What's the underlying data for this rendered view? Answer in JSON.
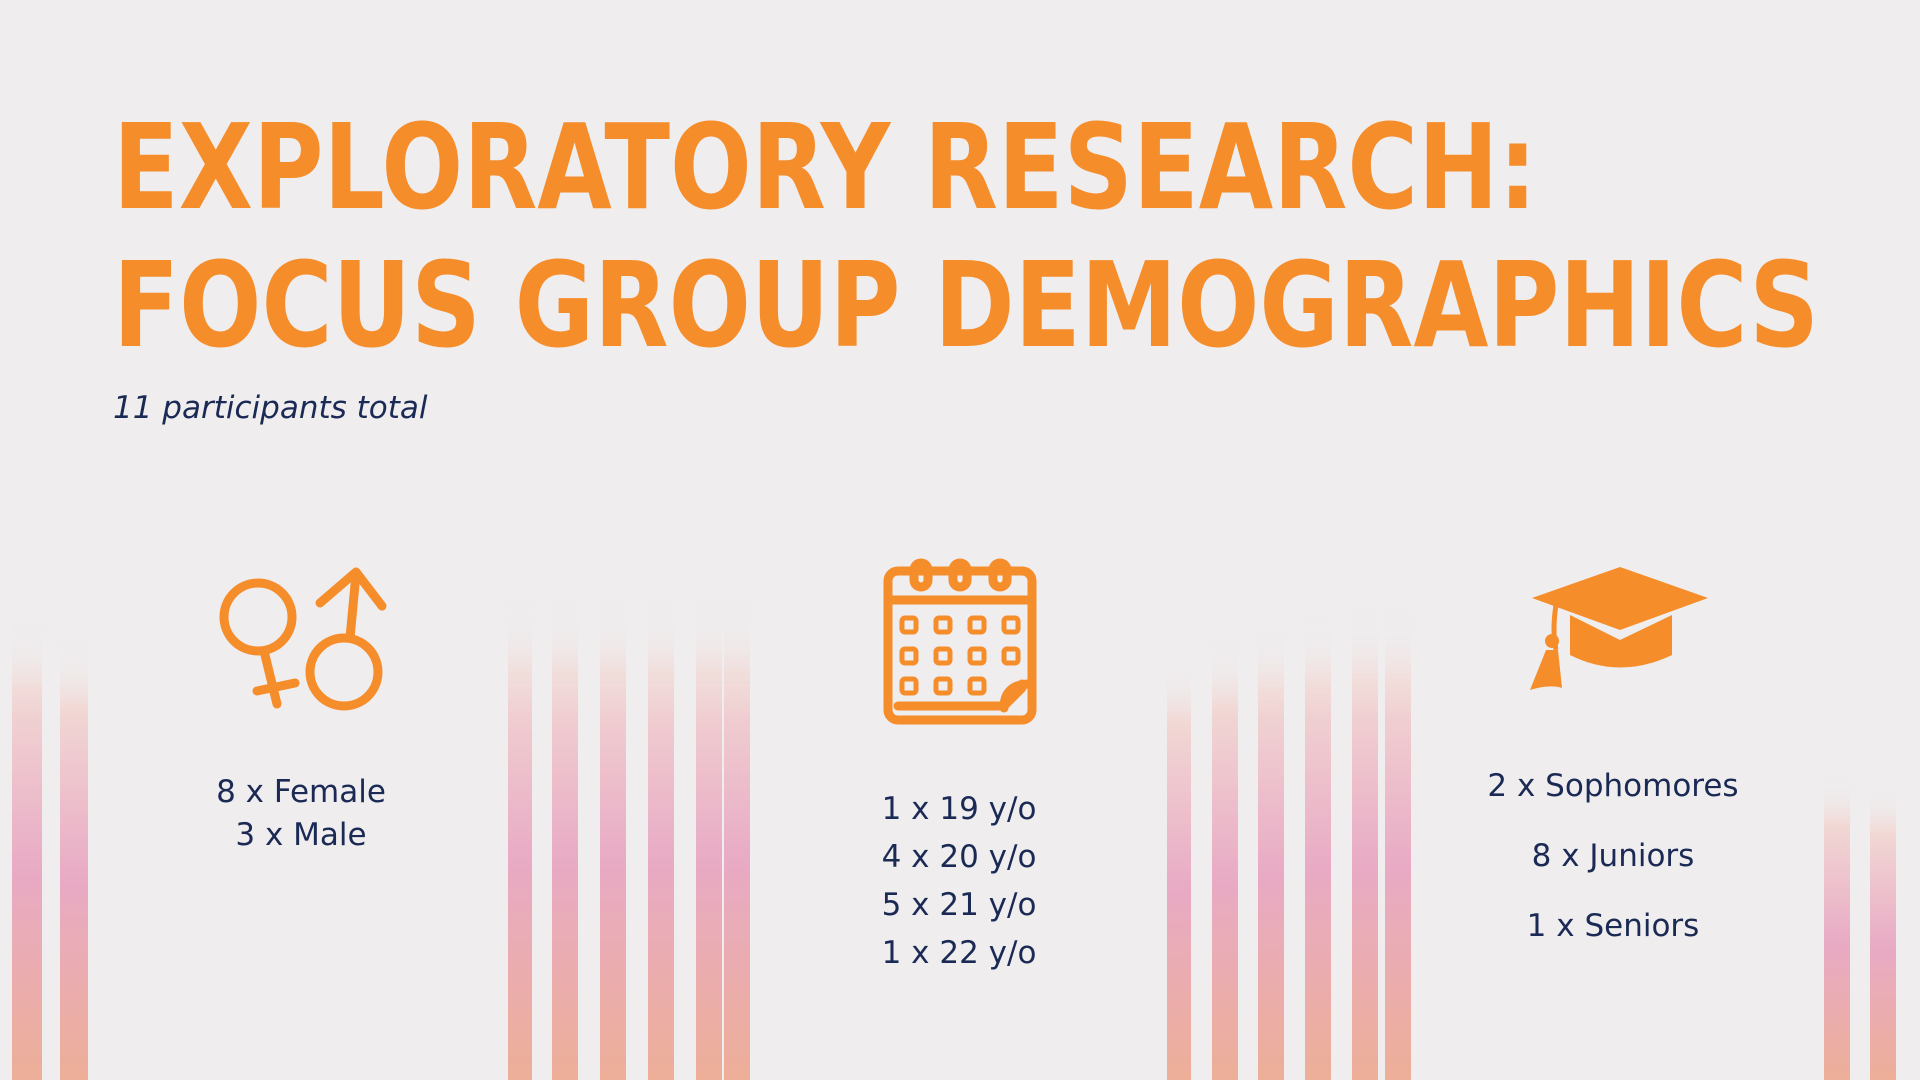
{
  "header": {
    "title_lines": [
      "EXPLORATORY RESEARCH:",
      "FOCUS GROUP DEMOGRAPHICS"
    ],
    "subtitle": "11 participants total"
  },
  "columns": [
    {
      "icon": "gender",
      "items": [
        "8 x Female",
        "3 x Male"
      ]
    },
    {
      "icon": "calendar",
      "items": [
        "1 x 19 y/o",
        "4 x 20 y/o",
        "5 x 21 y/o",
        "1 x 22 y/o"
      ]
    },
    {
      "icon": "graduation-cap",
      "items": [
        "2 x Sophomores",
        "8 x Juniors",
        "1 x Seniors"
      ]
    }
  ]
}
